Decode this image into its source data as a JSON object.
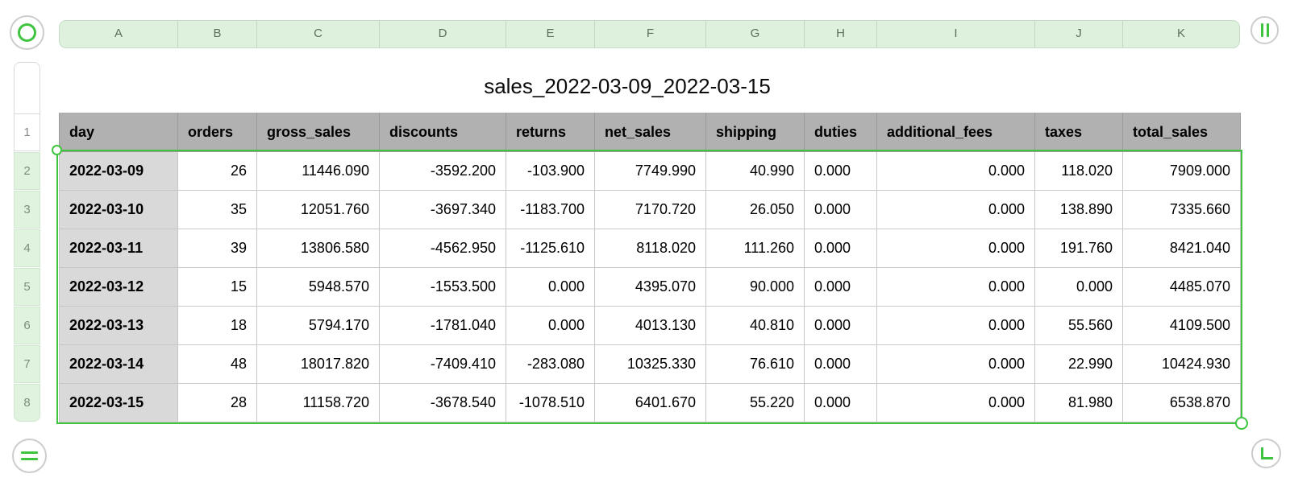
{
  "title": "sales_2022-03-09_2022-03-15",
  "colors": {
    "accent_green": "#3ec43e",
    "ruler_green_bg": "#def1dd",
    "header_row_bg": "#b1b1b1",
    "day_column_bg": "#d9d9d9",
    "cell_border": "#c7c7c7"
  },
  "icons": {
    "top_left": "table-handle-ring-icon",
    "top_right": "add-column-bars-icon",
    "bottom_left": "add-row-bars-icon",
    "bottom_right": "resize-corner-icon"
  },
  "ruler": {
    "column_letters": [
      "A",
      "B",
      "C",
      "D",
      "E",
      "F",
      "G",
      "H",
      "I",
      "J",
      "K"
    ],
    "row_numbers": [
      "1",
      "2",
      "3",
      "4",
      "5",
      "6",
      "7",
      "8"
    ]
  },
  "table": {
    "headers": [
      "day",
      "orders",
      "gross_sales",
      "discounts",
      "returns",
      "net_sales",
      "shipping",
      "duties",
      "additional_fees",
      "taxes",
      "total_sales"
    ],
    "rows": [
      [
        "2022-03-09",
        "26",
        "11446.090",
        "-3592.200",
        "-103.900",
        "7749.990",
        "40.990",
        "0.000",
        "0.000",
        "118.020",
        "7909.000"
      ],
      [
        "2022-03-10",
        "35",
        "12051.760",
        "-3697.340",
        "-1183.700",
        "7170.720",
        "26.050",
        "0.000",
        "0.000",
        "138.890",
        "7335.660"
      ],
      [
        "2022-03-11",
        "39",
        "13806.580",
        "-4562.950",
        "-1125.610",
        "8118.020",
        "111.260",
        "0.000",
        "0.000",
        "191.760",
        "8421.040"
      ],
      [
        "2022-03-12",
        "15",
        "5948.570",
        "-1553.500",
        "0.000",
        "4395.070",
        "90.000",
        "0.000",
        "0.000",
        "0.000",
        "4485.070"
      ],
      [
        "2022-03-13",
        "18",
        "5794.170",
        "-1781.040",
        "0.000",
        "4013.130",
        "40.810",
        "0.000",
        "0.000",
        "55.560",
        "4109.500"
      ],
      [
        "2022-03-14",
        "48",
        "18017.820",
        "-7409.410",
        "-283.080",
        "10325.330",
        "76.610",
        "0.000",
        "0.000",
        "22.990",
        "10424.930"
      ],
      [
        "2022-03-15",
        "28",
        "11158.720",
        "-3678.540",
        "-1078.510",
        "6401.670",
        "55.220",
        "0.000",
        "0.000",
        "81.980",
        "6538.870"
      ]
    ]
  }
}
